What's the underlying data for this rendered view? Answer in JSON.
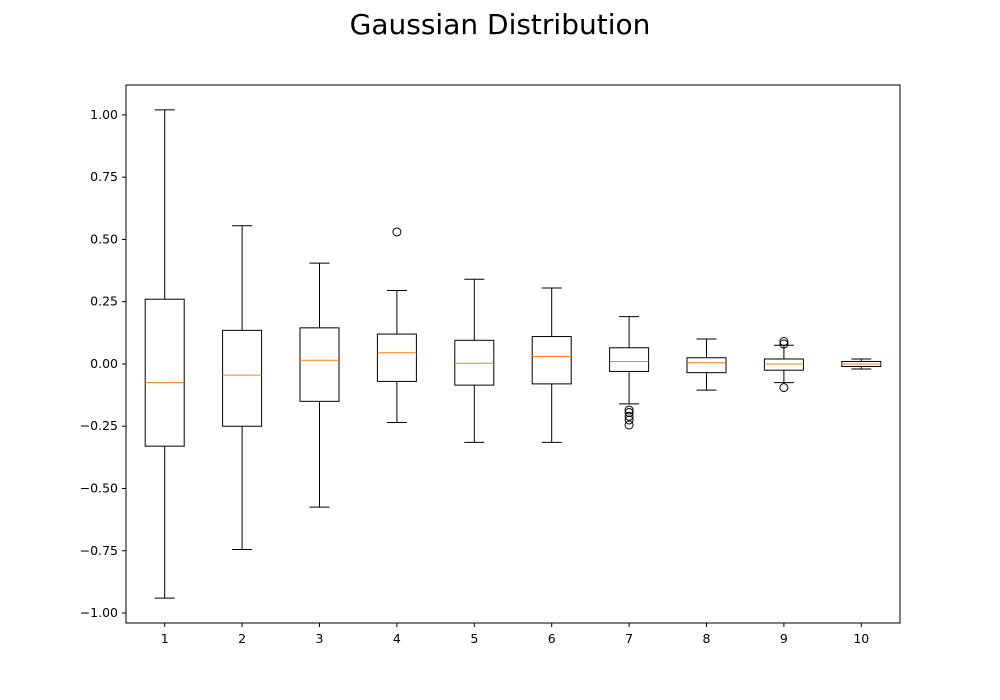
{
  "chart_data": {
    "type": "box",
    "title": "Gaussian Distribution",
    "xlabel": "",
    "ylabel": "",
    "ylim": [
      -1.04,
      1.12
    ],
    "yticks": [
      1.0,
      0.75,
      0.5,
      0.25,
      0.0,
      -0.25,
      -0.5,
      -0.75,
      -1.0
    ],
    "ytick_labels": [
      "1.00",
      "0.75",
      "0.50",
      "0.25",
      "0.00",
      "−0.25",
      "−0.50",
      "−0.75",
      "−1.00"
    ],
    "categories": [
      "1",
      "2",
      "3",
      "4",
      "5",
      "6",
      "7",
      "8",
      "9",
      "10"
    ],
    "grid": false,
    "box_color": "#000000",
    "median_color": "#ff7f0e",
    "boxes": [
      {
        "label": "1",
        "whisker_low": -0.94,
        "q1": -0.33,
        "median": -0.075,
        "q3": 0.26,
        "whisker_high": 1.02,
        "outliers": []
      },
      {
        "label": "2",
        "whisker_low": -0.745,
        "q1": -0.25,
        "median": -0.045,
        "q3": 0.135,
        "whisker_high": 0.555,
        "outliers": []
      },
      {
        "label": "3",
        "whisker_low": -0.575,
        "q1": -0.15,
        "median": 0.015,
        "q3": 0.145,
        "whisker_high": 0.405,
        "outliers": []
      },
      {
        "label": "4",
        "whisker_low": -0.235,
        "q1": -0.07,
        "median": 0.045,
        "q3": 0.12,
        "whisker_high": 0.295,
        "outliers": [
          0.53
        ]
      },
      {
        "label": "5",
        "whisker_low": -0.315,
        "q1": -0.085,
        "median": 0.003,
        "q3": 0.095,
        "whisker_high": 0.34,
        "outliers": []
      },
      {
        "label": "6",
        "whisker_low": -0.315,
        "q1": -0.08,
        "median": 0.03,
        "q3": 0.11,
        "whisker_high": 0.305,
        "outliers": []
      },
      {
        "label": "7",
        "whisker_low": -0.16,
        "q1": -0.03,
        "median": 0.01,
        "q3": 0.065,
        "whisker_high": 0.19,
        "outliers": [
          -0.185,
          -0.195,
          -0.21,
          -0.225,
          -0.245
        ]
      },
      {
        "label": "8",
        "whisker_low": -0.105,
        "q1": -0.035,
        "median": 0.005,
        "q3": 0.025,
        "whisker_high": 0.1,
        "outliers": []
      },
      {
        "label": "9",
        "whisker_low": -0.075,
        "q1": -0.025,
        "median": 0.0,
        "q3": 0.02,
        "whisker_high": 0.075,
        "outliers": [
          0.08,
          0.09,
          -0.095
        ]
      },
      {
        "label": "10",
        "whisker_low": -0.02,
        "q1": -0.01,
        "median": 0.0,
        "q3": 0.01,
        "whisker_high": 0.02,
        "outliers": []
      }
    ]
  }
}
